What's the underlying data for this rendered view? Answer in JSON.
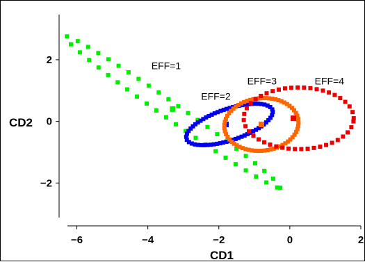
{
  "chart_data": {
    "type": "scatter",
    "title": "",
    "xlabel": "CD1",
    "ylabel": "CD2",
    "xlim": [
      -6.5,
      2.0
    ],
    "ylim": [
      -3.3,
      3.6
    ],
    "x_ticks": [
      -6,
      -4,
      -2,
      0,
      2
    ],
    "y_ticks": [
      -2,
      0,
      2
    ],
    "x_tick_labels": [
      "−6",
      "−4",
      "−2",
      "0",
      "2"
    ],
    "y_tick_labels": [
      "−2",
      "0",
      "2"
    ],
    "grid": false,
    "legend": "none",
    "series": [
      {
        "name": "EFF=1",
        "color": "#00ee00",
        "ellipse": {
          "center": [
            -3.3,
            0.3
          ],
          "semi_major": 3.9,
          "semi_minor": 0.25,
          "angle_deg": -39
        },
        "centroid": [
          -3.3,
          0.4
        ],
        "label_at": [
          -3.9,
          1.7
        ]
      },
      {
        "name": "EFF=2",
        "color": "#0000ee",
        "ellipse": {
          "center": [
            -1.7,
            -0.1
          ],
          "semi_major": 1.3,
          "semi_minor": 0.5,
          "angle_deg": 22
        },
        "centroid": [
          -1.8,
          -0.1
        ],
        "label_at": [
          -2.5,
          0.7
        ]
      },
      {
        "name": "EFF=3",
        "color": "#ff6600",
        "ellipse": {
          "center": [
            -0.8,
            -0.1
          ],
          "semi_major": 1.05,
          "semi_minor": 0.85,
          "angle_deg": 10
        },
        "centroid": [
          -0.8,
          -0.1
        ],
        "label_at": [
          -1.2,
          1.2
        ]
      },
      {
        "name": "EFF=4",
        "color": "#ee0000",
        "ellipse": {
          "center": [
            0.25,
            0.1
          ],
          "semi_major": 1.55,
          "semi_minor": 1.0,
          "angle_deg": 0
        },
        "centroid": [
          0.1,
          0.1
        ],
        "label_at": [
          0.7,
          1.2
        ]
      }
    ]
  }
}
